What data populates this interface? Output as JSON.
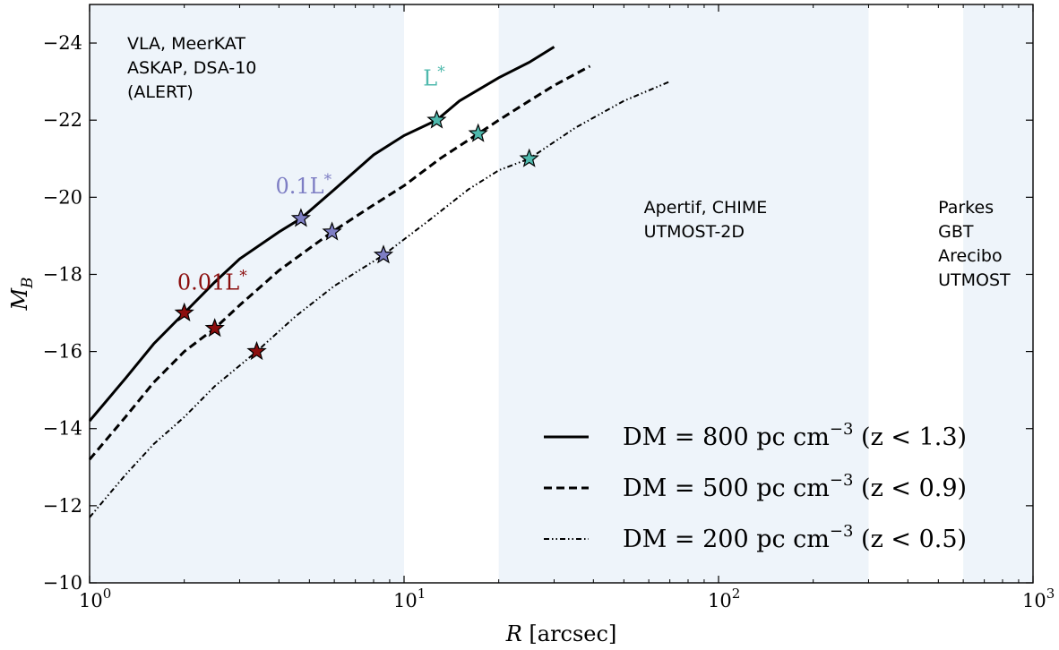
{
  "chart_data": {
    "type": "line",
    "xlabel": "R [arcsec]",
    "ylabel": "M_B",
    "x_scale": "log",
    "xlim": [
      1,
      1000
    ],
    "ylim": [
      -10,
      -25
    ],
    "y_inverted": true,
    "x_ticks": [
      {
        "value": 1,
        "label": "10",
        "exp": "0"
      },
      {
        "value": 10,
        "label": "10",
        "exp": "1"
      },
      {
        "value": 100,
        "label": "10",
        "exp": "2"
      },
      {
        "value": 1000,
        "label": "10",
        "exp": "3"
      }
    ],
    "y_ticks": [
      {
        "value": -24,
        "label": "−24"
      },
      {
        "value": -22,
        "label": "−22"
      },
      {
        "value": -20,
        "label": "−20"
      },
      {
        "value": -18,
        "label": "−18"
      },
      {
        "value": -16,
        "label": "−16"
      },
      {
        "value": -14,
        "label": "−14"
      },
      {
        "value": -12,
        "label": "−12"
      },
      {
        "value": -10,
        "label": "−10"
      }
    ],
    "regions": [
      {
        "xmin": 1,
        "xmax": 10,
        "color": "#eef4fa",
        "lines": [
          "VLA, MeerKAT",
          "ASKAP, DSA-10",
          "(ALERT)"
        ]
      },
      {
        "xmin": 20,
        "xmax": 300,
        "color": "#eef4fa",
        "lines": [
          "Apertif, CHIME",
          "UTMOST-2D"
        ]
      },
      {
        "xmin": 600,
        "xmax": 1000,
        "color": "#eef4fa",
        "lines": [
          "Parkes",
          "GBT",
          "Arecibo",
          "UTMOST"
        ]
      }
    ],
    "series": [
      {
        "name": "DM = 800 pc cm⁻³ (z < 1.3)",
        "legend": {
          "pre": "DM = 800 pc cm",
          "sup": "−3",
          "post": " (z < 1.3)"
        },
        "dash": "solid",
        "x": [
          1.0,
          1.3,
          1.6,
          2.0,
          2.5,
          3.0,
          4.0,
          4.7,
          6.0,
          8.0,
          10.0,
          12.7,
          15.0,
          20.0,
          25.0,
          30.0
        ],
        "y": [
          -14.2,
          -15.3,
          -16.2,
          -17.0,
          -17.8,
          -18.4,
          -19.1,
          -19.45,
          -20.2,
          -21.1,
          -21.6,
          -22.0,
          -22.5,
          -23.1,
          -23.5,
          -23.9
        ]
      },
      {
        "name": "DM = 500 pc cm⁻³ (z < 0.9)",
        "legend": {
          "pre": "DM = 500 pc cm",
          "sup": "−3",
          "post": " (z < 0.9)"
        },
        "dash": "dashed",
        "x": [
          1.0,
          1.3,
          1.6,
          2.0,
          2.5,
          3.0,
          4.0,
          5.9,
          8.0,
          10.0,
          13.0,
          17.2,
          20.0,
          25.0,
          30.0,
          39.0
        ],
        "y": [
          -13.2,
          -14.3,
          -15.2,
          -16.0,
          -16.6,
          -17.2,
          -18.1,
          -19.1,
          -19.8,
          -20.3,
          -21.0,
          -21.65,
          -22.0,
          -22.5,
          -22.9,
          -23.4
        ]
      },
      {
        "name": "DM = 200 pc cm⁻³ (z < 0.5)",
        "legend": {
          "pre": "DM = 200 pc cm",
          "sup": "−3",
          "post": " (z < 0.5)"
        },
        "dash": "dashdot",
        "x": [
          1.0,
          1.3,
          1.6,
          2.0,
          2.5,
          3.4,
          4.5,
          6.0,
          8.6,
          12.0,
          16.0,
          20.0,
          25.0,
          35.0,
          50.0,
          70.0
        ],
        "y": [
          -11.7,
          -12.8,
          -13.6,
          -14.3,
          -15.1,
          -16.0,
          -16.9,
          -17.7,
          -18.5,
          -19.4,
          -20.2,
          -20.7,
          -21.0,
          -21.8,
          -22.5,
          -23.0
        ]
      }
    ],
    "markers": [
      {
        "group": "L*",
        "color": "#4fb9ad",
        "points": [
          [
            12.7,
            -22.0
          ],
          [
            17.2,
            -21.65
          ],
          [
            25.0,
            -21.0
          ]
        ]
      },
      {
        "group": "0.1L*",
        "color": "#7e7ec4",
        "points": [
          [
            4.7,
            -19.45
          ],
          [
            5.9,
            -19.1
          ],
          [
            8.6,
            -18.5
          ]
        ]
      },
      {
        "group": "0.01L*",
        "color": "#8b0e0e",
        "points": [
          [
            2.0,
            -17.0
          ],
          [
            2.5,
            -16.6
          ],
          [
            3.4,
            -16.0
          ]
        ]
      }
    ],
    "annotations": [
      {
        "pre": "L",
        "sup": "*",
        "color": "#4fb9ad",
        "x": 11.5,
        "y": -22.9
      },
      {
        "pre": "0.1L",
        "sup": "*",
        "color": "#7e7ec4",
        "x": 3.9,
        "y": -20.1
      },
      {
        "pre": "0.01L",
        "sup": "*",
        "color": "#8b0e0e",
        "x": 1.9,
        "y": -17.6
      }
    ],
    "legend_position": "lower-right",
    "grid": false
  }
}
